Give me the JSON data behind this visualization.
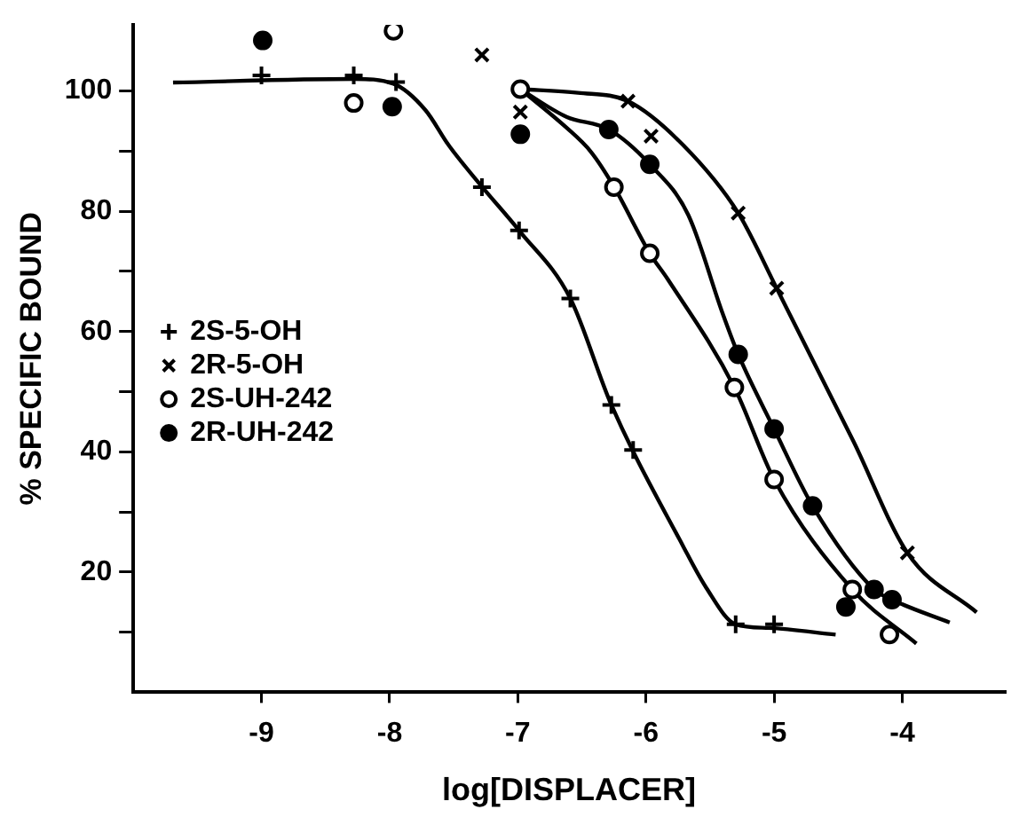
{
  "chart_data": {
    "type": "scatter",
    "xlabel": "log[DISPLACER]",
    "ylabel": "% SPECIFIC BOUND",
    "xlim": [
      -10,
      -3.2
    ],
    "xticks": [
      -9,
      -8,
      -7,
      -6,
      -5,
      -4
    ],
    "ylim": [
      0,
      111
    ],
    "yticks": [
      {
        "value": 10,
        "label": null
      },
      20,
      {
        "value": 30,
        "label": null
      },
      40,
      {
        "value": 50,
        "label": null
      },
      60,
      {
        "value": 70,
        "label": null
      },
      80,
      {
        "value": 90,
        "label": null
      },
      100
    ],
    "grid": false,
    "legend": "center left",
    "series": [
      {
        "name": "2S-5-OH",
        "color": "#000000",
        "marker": "plus",
        "x": [
          -9,
          -8.28,
          -7.95,
          -7.28,
          -6.99,
          -6.59,
          -6.27,
          -6.1,
          -5.3,
          -5.0
        ],
        "values": [
          102.6,
          102.6,
          101.5,
          84,
          76.8,
          65.5,
          47.8,
          40.3,
          11.3,
          11.3
        ]
      },
      {
        "name": "2R-5-OH",
        "color": "#000000",
        "marker": "cross",
        "x": [
          -7.28,
          -6.98,
          -6.14,
          -5.96,
          -5.28,
          -4.98,
          -3.96
        ],
        "values": [
          106,
          96.5,
          98.3,
          92.5,
          79.7,
          67.2,
          23.2
        ]
      },
      {
        "name": "2S-UH-242",
        "color": "#ffffff",
        "marker": "circle",
        "x": [
          -7.97,
          -8.28,
          -6.98,
          -6.25,
          -5.97,
          -5.31,
          -5.0,
          -4.39,
          -4.1
        ],
        "values": [
          110,
          98,
          100.3,
          84,
          73,
          50.7,
          35.4,
          17.1,
          9.6
        ]
      },
      {
        "name": "2R-UH-242",
        "color": "#000000",
        "marker": "circle",
        "x": [
          -8.99,
          -7.98,
          -6.98,
          -6.29,
          -5.97,
          -5.28,
          -5.0,
          -4.7,
          -4.22,
          -4.44,
          -4.08
        ],
        "values": [
          108.4,
          97.4,
          92.8,
          93.6,
          87.8,
          56.2,
          43.8,
          31,
          17.1,
          14.2,
          15.4
        ]
      },
      {
        "type": "line",
        "color": "#000000",
        "marker": "none",
        "x": [
          -9.69,
          -8.28,
          -7.97,
          -7.72,
          -7.54,
          -7.28,
          -6.99,
          -6.59,
          -6.27,
          -5.71,
          -5.53,
          -5.3,
          -5.04,
          -4.52
        ],
        "values": [
          101.4,
          102,
          101.2,
          96.8,
          91,
          84.1,
          76.8,
          65.5,
          47.8,
          24.3,
          17.4,
          11.3,
          10.7,
          9.6
        ]
      },
      {
        "type": "line",
        "color": "#000000",
        "marker": "none",
        "x": [
          -6.98,
          -6.53,
          -6.14,
          -5.71,
          -5.28,
          -4.98,
          -4.38,
          -3.96,
          -3.42
        ],
        "values": [
          100.3,
          99.7,
          98.3,
          91,
          79.7,
          67.2,
          41.7,
          23.2,
          13.3
        ]
      },
      {
        "type": "line",
        "color": "#000000",
        "marker": "none",
        "x": [
          -6.98,
          -6.62,
          -6.43,
          -6.25,
          -5.97,
          -5.83,
          -5.31,
          -5.0,
          -4.39,
          -3.89
        ],
        "values": [
          100.3,
          93.9,
          89.9,
          84.1,
          73,
          68.7,
          50.7,
          35.4,
          17.1,
          8.1
        ]
      },
      {
        "type": "line",
        "color": "#000000",
        "marker": "none",
        "x": [
          -6.98,
          -6.62,
          -6.29,
          -5.97,
          -5.67,
          -5.4,
          -5.28,
          -5.0,
          -4.7,
          -4.22,
          -4.08,
          -3.63
        ],
        "values": [
          100.3,
          95.7,
          93.6,
          87.8,
          79.4,
          62.9,
          56.2,
          43.8,
          31,
          17.1,
          15.4,
          11.6
        ]
      }
    ]
  }
}
